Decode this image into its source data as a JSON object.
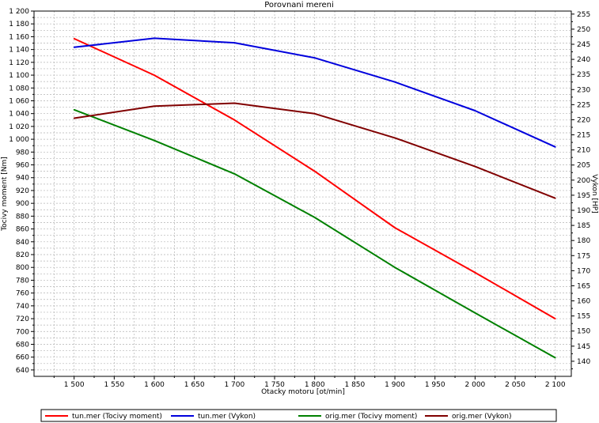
{
  "chart_data": {
    "type": "line",
    "title": "Porovnani mereni",
    "xlabel": "Otacky motoru [ot/min]",
    "ylabel_left": "Tocivy moment [Nm]",
    "ylabel_right": "Vykon [HP]",
    "xlim": [
      1450,
      2120
    ],
    "ylim_left": [
      630,
      1200
    ],
    "ylim_right": [
      135,
      256
    ],
    "x_ticks": [
      1500,
      1550,
      1600,
      1650,
      1700,
      1750,
      1800,
      1850,
      1900,
      1950,
      2000,
      2050,
      2100
    ],
    "x_tick_labels": [
      "1 500",
      "1 550",
      "1 600",
      "1 650",
      "1 700",
      "1 750",
      "1 800",
      "1 850",
      "1 900",
      "1 950",
      "2 000",
      "2 050",
      "2 100"
    ],
    "y_left_ticks": [
      640,
      660,
      680,
      700,
      720,
      740,
      760,
      780,
      800,
      820,
      840,
      860,
      880,
      900,
      920,
      940,
      960,
      980,
      1000,
      1020,
      1040,
      1060,
      1080,
      1100,
      1120,
      1140,
      1160,
      1180,
      1200
    ],
    "y_left_tick_labels": [
      "640",
      "660",
      "680",
      "700",
      "720",
      "740",
      "760",
      "780",
      "800",
      "820",
      "840",
      "860",
      "880",
      "900",
      "920",
      "940",
      "960",
      "980",
      "1 000",
      "1 020",
      "1 040",
      "1 060",
      "1 080",
      "1 100",
      "1 120",
      "1 140",
      "1 160",
      "1 180",
      "1 200"
    ],
    "y_right_ticks": [
      140,
      145,
      150,
      155,
      160,
      165,
      170,
      175,
      180,
      185,
      190,
      195,
      200,
      205,
      210,
      215,
      220,
      225,
      230,
      235,
      240,
      245,
      250,
      255
    ],
    "y_right_tick_labels": [
      "140",
      "145",
      "150",
      "155",
      "160",
      "165",
      "170",
      "175",
      "180",
      "185",
      "190",
      "195",
      "200",
      "205",
      "210",
      "215",
      "220",
      "225",
      "230",
      "235",
      "240",
      "245",
      "250",
      "255"
    ],
    "grid": true,
    "legend_position": "bottom",
    "series": [
      {
        "name": "tun.mer  (Tocivy moment)",
        "axis": "left",
        "color": "#ff0000",
        "x": [
          1500,
          1600,
          1700,
          1800,
          1900,
          2000,
          2100
        ],
        "y": [
          1157,
          1100,
          1030,
          950,
          862,
          792,
          720
        ]
      },
      {
        "name": "tun.mer  (Vykon)",
        "axis": "right",
        "color": "#0000dd",
        "x": [
          1500,
          1600,
          1700,
          1800,
          1900,
          2000,
          2100
        ],
        "y": [
          244,
          247,
          245.5,
          240.5,
          232.5,
          223,
          211
        ]
      },
      {
        "name": "orig.mer  (Tocivy moment)",
        "axis": "left",
        "color": "#008000",
        "x": [
          1500,
          1600,
          1700,
          1800,
          1900,
          2000,
          2100
        ],
        "y": [
          1046,
          998,
          946,
          878,
          800,
          729,
          659
        ]
      },
      {
        "name": "orig.mer  (Vykon)",
        "axis": "right",
        "color": "#800000",
        "x": [
          1500,
          1600,
          1700,
          1800,
          1900,
          2000,
          2100
        ],
        "y": [
          220.5,
          224.5,
          225.5,
          222,
          214,
          204.5,
          194
        ]
      }
    ]
  }
}
